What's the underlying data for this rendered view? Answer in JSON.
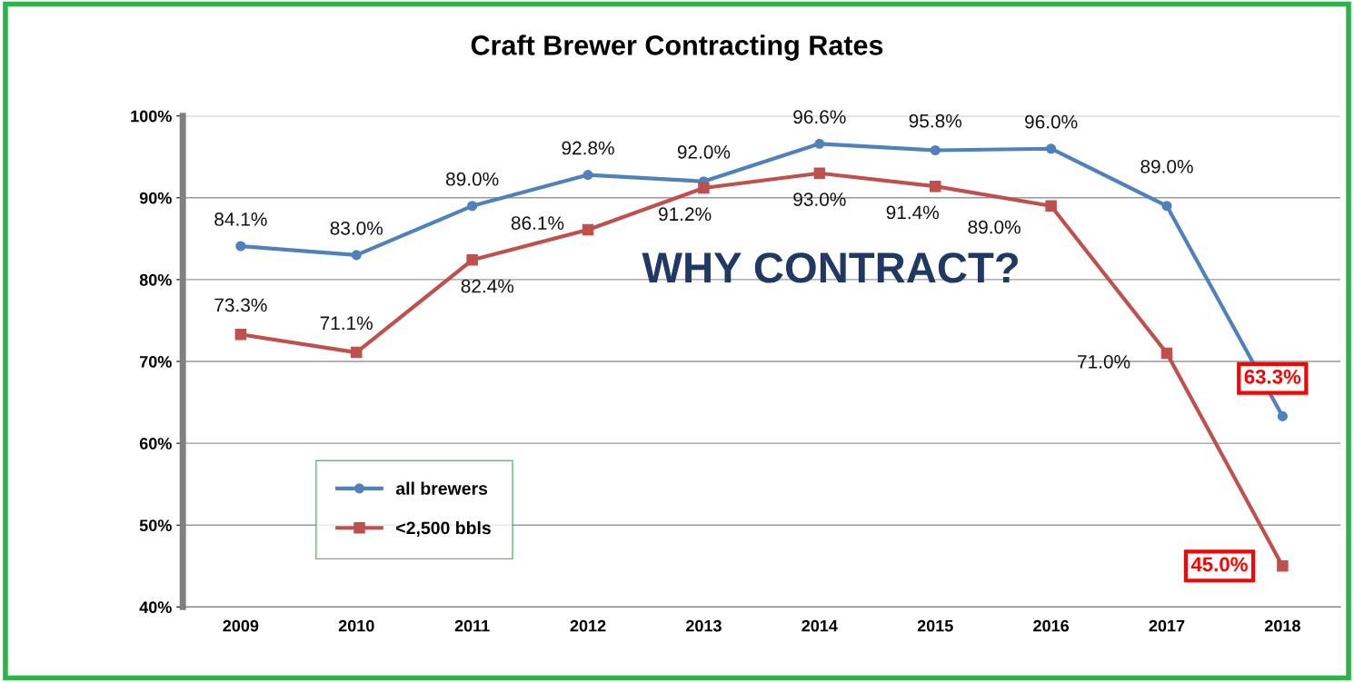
{
  "chart_data": {
    "type": "line",
    "title": "Craft Brewer Contracting Rates",
    "categories": [
      "2009",
      "2010",
      "2011",
      "2012",
      "2013",
      "2014",
      "2015",
      "2016",
      "2017",
      "2018"
    ],
    "series": [
      {
        "name": "all brewers",
        "color": "#4f81bd",
        "marker": "circle",
        "values": [
          84.1,
          83.0,
          89.0,
          92.8,
          92.0,
          96.6,
          95.8,
          96.0,
          89.0,
          63.3
        ],
        "value_labels": [
          "84.1%",
          "83.0%",
          "89.0%",
          "92.8%",
          "92.0%",
          "96.6%",
          "95.8%",
          "96.0%",
          "89.0%",
          "63.3%"
        ]
      },
      {
        "name": "<2,500 bbls",
        "color": "#c0504d",
        "marker": "square",
        "values": [
          73.3,
          71.1,
          82.4,
          86.1,
          91.2,
          93.0,
          91.4,
          89.0,
          71.0,
          45.0
        ],
        "value_labels": [
          "73.3%",
          "71.1%",
          "82.4%",
          "86.1%",
          "91.2%",
          "93.0%",
          "91.4%",
          "89.0%",
          "71.0%",
          "45.0%"
        ]
      }
    ],
    "ylim": [
      40,
      100
    ],
    "yticks": [
      {
        "value": 40,
        "label": "40%"
      },
      {
        "value": 50,
        "label": "50%"
      },
      {
        "value": 60,
        "label": "60%"
      },
      {
        "value": 70,
        "label": "70%"
      },
      {
        "value": 80,
        "label": "80%"
      },
      {
        "value": 90,
        "label": "90%"
      },
      {
        "value": 100,
        "label": "100%"
      }
    ],
    "grid": "y",
    "legend": "bottom",
    "line_style": "solid",
    "annotations": [
      "WHY CONTRACT?"
    ]
  }
}
